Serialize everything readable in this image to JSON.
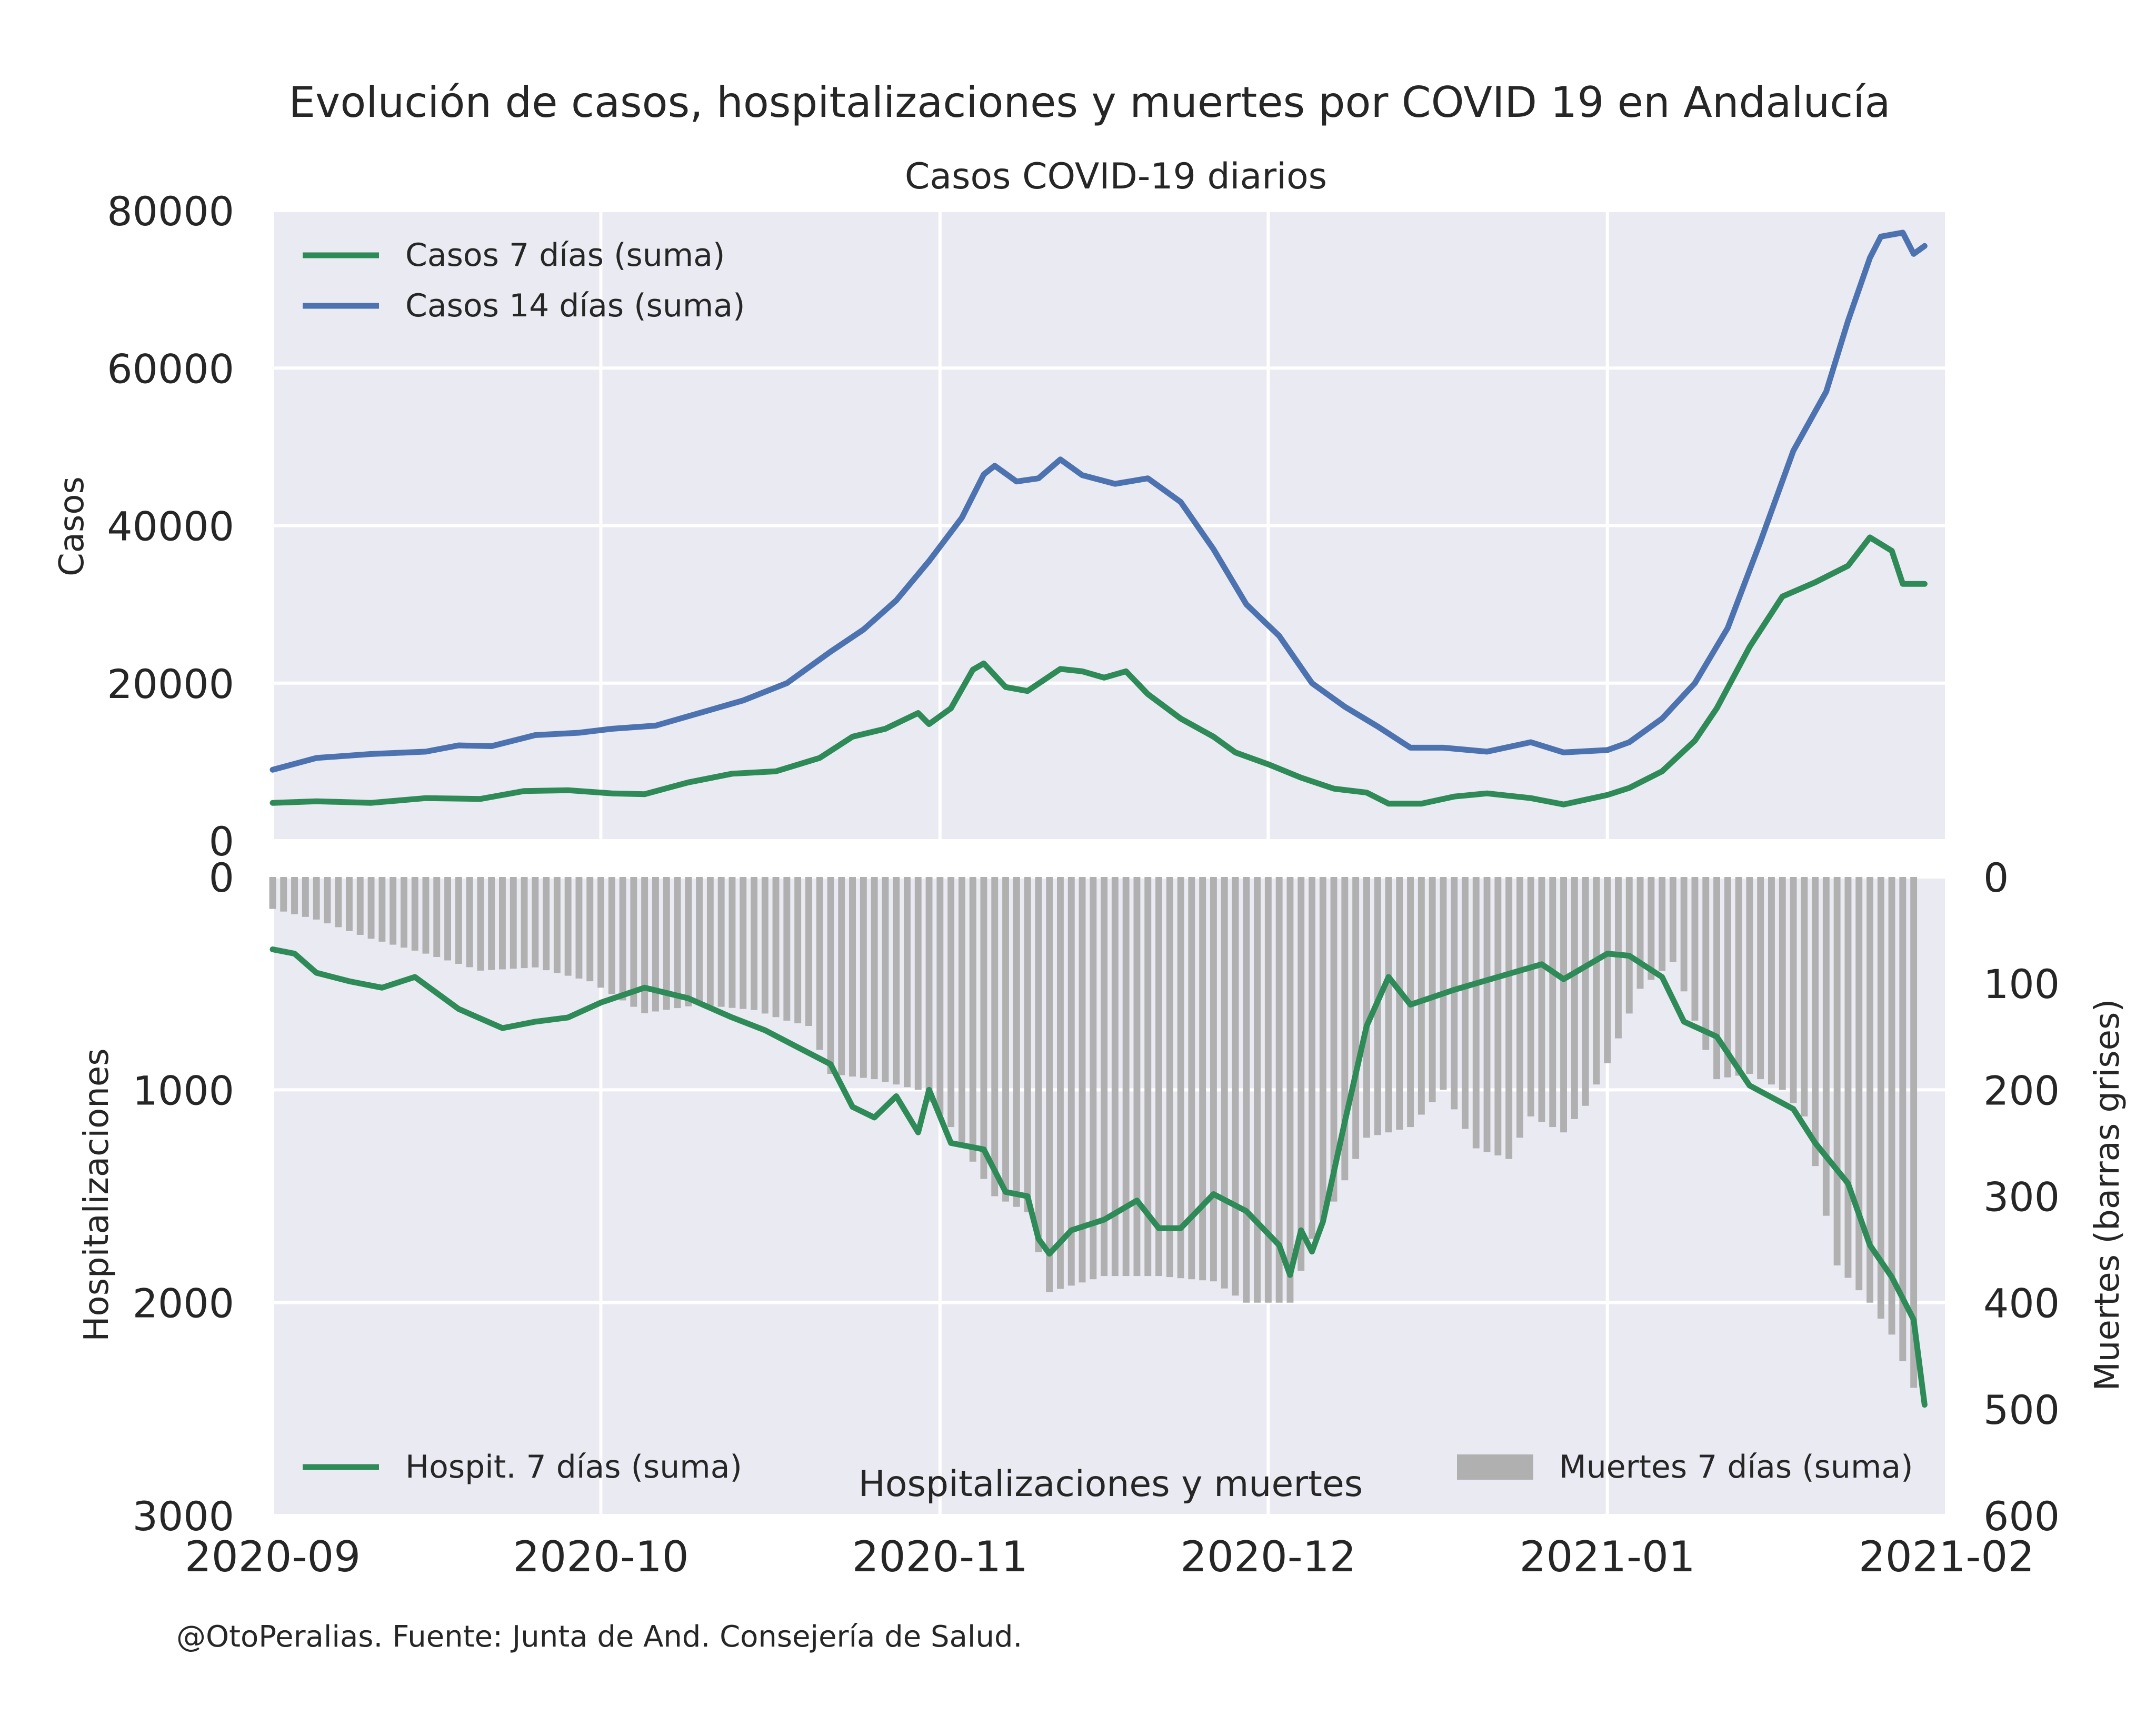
{
  "title": "Evolución de casos, hospitalizaciones y muertes por COVID 19 en Andalucía",
  "footer": "@OtoPeralias. Fuente: Junta de And. Consejería de Salud.",
  "colors": {
    "panel_bg": "#eaeaf2",
    "grid": "#ffffff",
    "green": "#2e8a57",
    "blue": "#4c72b0",
    "bars": "#b0b0b0",
    "text": "#262626"
  },
  "chart_data": [
    {
      "type": "line",
      "title": "Casos COVID-19 diarios",
      "xlabel": "",
      "ylabel": "Casos",
      "xlim": [
        "2020-09-01",
        "2021-02-01"
      ],
      "ylim": [
        0,
        80000
      ],
      "yticks": [
        "0",
        "20000",
        "40000",
        "60000",
        "80000"
      ],
      "grid": true,
      "legend": "top-left",
      "series": [
        {
          "name": "Casos 7 días (suma)",
          "color": "#2e8a57",
          "points": [
            [
              "2020-09-01",
              4800
            ],
            [
              "2020-09-05",
              5000
            ],
            [
              "2020-09-10",
              4800
            ],
            [
              "2020-09-15",
              5400
            ],
            [
              "2020-09-20",
              5300
            ],
            [
              "2020-09-24",
              6300
            ],
            [
              "2020-09-28",
              6400
            ],
            [
              "2020-10-02",
              6000
            ],
            [
              "2020-10-05",
              5900
            ],
            [
              "2020-10-09",
              7400
            ],
            [
              "2020-10-13",
              8500
            ],
            [
              "2020-10-17",
              8800
            ],
            [
              "2020-10-21",
              10500
            ],
            [
              "2020-10-24",
              13200
            ],
            [
              "2020-10-27",
              14200
            ],
            [
              "2020-10-30",
              16200
            ],
            [
              "2020-10-31",
              14800
            ],
            [
              "2020-11-02",
              16800
            ],
            [
              "2020-11-04",
              21700
            ],
            [
              "2020-11-05",
              22500
            ],
            [
              "2020-11-07",
              19500
            ],
            [
              "2020-11-09",
              19000
            ],
            [
              "2020-11-12",
              21800
            ],
            [
              "2020-11-14",
              21500
            ],
            [
              "2020-11-16",
              20700
            ],
            [
              "2020-11-18",
              21500
            ],
            [
              "2020-11-20",
              18600
            ],
            [
              "2020-11-23",
              15500
            ],
            [
              "2020-11-26",
              13200
            ],
            [
              "2020-11-28",
              11200
            ],
            [
              "2020-12-01",
              9700
            ],
            [
              "2020-12-04",
              8000
            ],
            [
              "2020-12-07",
              6600
            ],
            [
              "2020-12-10",
              6100
            ],
            [
              "2020-12-12",
              4700
            ],
            [
              "2020-12-15",
              4700
            ],
            [
              "2020-12-18",
              5600
            ],
            [
              "2020-12-21",
              6000
            ],
            [
              "2020-12-25",
              5400
            ],
            [
              "2020-12-28",
              4600
            ],
            [
              "2021-01-01",
              5800
            ],
            [
              "2021-01-03",
              6700
            ],
            [
              "2021-01-06",
              8800
            ],
            [
              "2021-01-09",
              12700
            ],
            [
              "2021-01-11",
              16800
            ],
            [
              "2021-01-14",
              24600
            ],
            [
              "2021-01-17",
              31000
            ],
            [
              "2021-01-20",
              32800
            ],
            [
              "2021-01-23",
              34900
            ],
            [
              "2021-01-25",
              38500
            ],
            [
              "2021-01-27",
              36800
            ],
            [
              "2021-01-28",
              32600
            ],
            [
              "2021-01-30",
              32600
            ]
          ]
        },
        {
          "name": "Casos 14 días (suma)",
          "color": "#4c72b0",
          "points": [
            [
              "2020-09-01",
              9000
            ],
            [
              "2020-09-05",
              10500
            ],
            [
              "2020-09-10",
              11000
            ],
            [
              "2020-09-15",
              11300
            ],
            [
              "2020-09-18",
              12100
            ],
            [
              "2020-09-21",
              12000
            ],
            [
              "2020-09-25",
              13400
            ],
            [
              "2020-09-29",
              13700
            ],
            [
              "2020-10-02",
              14200
            ],
            [
              "2020-10-06",
              14600
            ],
            [
              "2020-10-10",
              16200
            ],
            [
              "2020-10-14",
              17800
            ],
            [
              "2020-10-18",
              20000
            ],
            [
              "2020-10-22",
              24000
            ],
            [
              "2020-10-25",
              26800
            ],
            [
              "2020-10-28",
              30500
            ],
            [
              "2020-10-31",
              35500
            ],
            [
              "2020-11-03",
              41000
            ],
            [
              "2020-11-05",
              46500
            ],
            [
              "2020-11-06",
              47600
            ],
            [
              "2020-11-08",
              45600
            ],
            [
              "2020-11-10",
              46000
            ],
            [
              "2020-11-12",
              48400
            ],
            [
              "2020-11-14",
              46400
            ],
            [
              "2020-11-17",
              45300
            ],
            [
              "2020-11-20",
              46000
            ],
            [
              "2020-11-23",
              43000
            ],
            [
              "2020-11-26",
              37000
            ],
            [
              "2020-11-29",
              30000
            ],
            [
              "2020-12-02",
              26000
            ],
            [
              "2020-12-05",
              20000
            ],
            [
              "2020-12-08",
              17000
            ],
            [
              "2020-12-11",
              14500
            ],
            [
              "2020-12-14",
              11800
            ],
            [
              "2020-12-17",
              11800
            ],
            [
              "2020-12-21",
              11300
            ],
            [
              "2020-12-25",
              12500
            ],
            [
              "2020-12-28",
              11200
            ],
            [
              "2021-01-01",
              11500
            ],
            [
              "2021-01-03",
              12500
            ],
            [
              "2021-01-06",
              15500
            ],
            [
              "2021-01-09",
              20000
            ],
            [
              "2021-01-12",
              27000
            ],
            [
              "2021-01-15",
              38000
            ],
            [
              "2021-01-18",
              49500
            ],
            [
              "2021-01-21",
              57000
            ],
            [
              "2021-01-23",
              66000
            ],
            [
              "2021-01-25",
              74000
            ],
            [
              "2021-01-26",
              76700
            ],
            [
              "2021-01-28",
              77200
            ],
            [
              "2021-01-29",
              74500
            ],
            [
              "2021-01-30",
              75500
            ]
          ]
        }
      ]
    },
    {
      "type": "line+bar",
      "title": "Hospitalizaciones y muertes",
      "xlabel": "",
      "ylabel": "Hospitalizaciones",
      "ylabel_right": "Muertes (barras grises)",
      "xlim": [
        "2020-09-01",
        "2021-02-01"
      ],
      "ylim": [
        3000,
        0
      ],
      "ylim_right": [
        600,
        0
      ],
      "yticks": [
        "0",
        "1000",
        "2000",
        "3000"
      ],
      "yticks_right": [
        "0",
        "100",
        "200",
        "300",
        "400",
        "500",
        "600"
      ],
      "xticks": [
        "2020-09",
        "2020-10",
        "2020-11",
        "2020-12",
        "2021-01",
        "2021-02"
      ],
      "grid": true,
      "legend": "bottom-left, bottom-right",
      "series": [
        {
          "name": "Hospit. 7 días (suma)",
          "color": "#2e8a57",
          "axis": "left",
          "points": [
            [
              "2020-09-01",
              340
            ],
            [
              "2020-09-03",
              360
            ],
            [
              "2020-09-05",
              450
            ],
            [
              "2020-09-08",
              490
            ],
            [
              "2020-09-11",
              520
            ],
            [
              "2020-09-14",
              470
            ],
            [
              "2020-09-18",
              620
            ],
            [
              "2020-09-22",
              710
            ],
            [
              "2020-09-25",
              680
            ],
            [
              "2020-09-28",
              660
            ],
            [
              "2020-10-01",
              590
            ],
            [
              "2020-10-05",
              520
            ],
            [
              "2020-10-09",
              570
            ],
            [
              "2020-10-13",
              660
            ],
            [
              "2020-10-16",
              720
            ],
            [
              "2020-10-19",
              800
            ],
            [
              "2020-10-22",
              880
            ],
            [
              "2020-10-24",
              1080
            ],
            [
              "2020-10-26",
              1130
            ],
            [
              "2020-10-28",
              1030
            ],
            [
              "2020-10-30",
              1200
            ],
            [
              "2020-10-31",
              1000
            ],
            [
              "2020-11-02",
              1250
            ],
            [
              "2020-11-05",
              1280
            ],
            [
              "2020-11-07",
              1480
            ],
            [
              "2020-11-09",
              1500
            ],
            [
              "2020-11-10",
              1700
            ],
            [
              "2020-11-11",
              1770
            ],
            [
              "2020-11-13",
              1660
            ],
            [
              "2020-11-16",
              1610
            ],
            [
              "2020-11-19",
              1520
            ],
            [
              "2020-11-21",
              1650
            ],
            [
              "2020-11-23",
              1650
            ],
            [
              "2020-11-26",
              1490
            ],
            [
              "2020-11-29",
              1570
            ],
            [
              "2020-12-02",
              1730
            ],
            [
              "2020-12-03",
              1870
            ],
            [
              "2020-12-04",
              1660
            ],
            [
              "2020-12-05",
              1760
            ],
            [
              "2020-12-06",
              1620
            ],
            [
              "2020-12-08",
              1150
            ],
            [
              "2020-12-10",
              700
            ],
            [
              "2020-12-12",
              470
            ],
            [
              "2020-12-14",
              600
            ],
            [
              "2020-12-18",
              530
            ],
            [
              "2020-12-22",
              470
            ],
            [
              "2020-12-26",
              410
            ],
            [
              "2020-12-28",
              480
            ],
            [
              "2021-01-01",
              360
            ],
            [
              "2021-01-03",
              370
            ],
            [
              "2021-01-06",
              470
            ],
            [
              "2021-01-08",
              680
            ],
            [
              "2021-01-11",
              750
            ],
            [
              "2021-01-14",
              980
            ],
            [
              "2021-01-18",
              1090
            ],
            [
              "2021-01-20",
              1250
            ],
            [
              "2021-01-23",
              1440
            ],
            [
              "2021-01-25",
              1730
            ],
            [
              "2021-01-27",
              1880
            ],
            [
              "2021-01-29",
              2080
            ],
            [
              "2021-01-30",
              2480
            ]
          ]
        },
        {
          "name": "Muertes 7 días (suma)",
          "color": "#b0b0b0",
          "axis": "right",
          "type": "bar",
          "points": [
            [
              "2020-09-01",
              30
            ],
            [
              "2020-09-05",
              40
            ],
            [
              "2020-09-10",
              58
            ],
            [
              "2020-09-15",
              72
            ],
            [
              "2020-09-20",
              88
            ],
            [
              "2020-09-25",
              85
            ],
            [
              "2020-09-30",
              98
            ],
            [
              "2020-10-05",
              128
            ],
            [
              "2020-10-10",
              120
            ],
            [
              "2020-10-15",
              125
            ],
            [
              "2020-10-18",
              135
            ],
            [
              "2020-10-20",
              140
            ],
            [
              "2020-10-22",
              185
            ],
            [
              "2020-10-26",
              190
            ],
            [
              "2020-10-30",
              200
            ],
            [
              "2020-11-02",
              235
            ],
            [
              "2020-11-06",
              300
            ],
            [
              "2020-11-09",
              315
            ],
            [
              "2020-11-11",
              390
            ],
            [
              "2020-11-16",
              375
            ],
            [
              "2020-11-21",
              375
            ],
            [
              "2020-11-26",
              380
            ],
            [
              "2020-11-29",
              400
            ],
            [
              "2020-12-03",
              400
            ],
            [
              "2020-12-05",
              340
            ],
            [
              "2020-12-07",
              305
            ],
            [
              "2020-12-10",
              245
            ],
            [
              "2020-12-14",
              235
            ],
            [
              "2020-12-17",
              200
            ],
            [
              "2020-12-20",
              255
            ],
            [
              "2020-12-23",
              265
            ],
            [
              "2020-12-25",
              225
            ],
            [
              "2020-12-28",
              240
            ],
            [
              "2020-12-30",
              215
            ],
            [
              "2021-01-01",
              175
            ],
            [
              "2021-01-04",
              105
            ],
            [
              "2021-01-07",
              80
            ],
            [
              "2021-01-09",
              135
            ],
            [
              "2021-01-11",
              190
            ],
            [
              "2021-01-14",
              185
            ],
            [
              "2021-01-17",
              200
            ],
            [
              "2021-01-19",
              225
            ],
            [
              "2021-01-22",
              365
            ],
            [
              "2021-01-25",
              400
            ],
            [
              "2021-01-27",
              430
            ],
            [
              "2021-01-29",
              480
            ]
          ]
        }
      ]
    }
  ]
}
